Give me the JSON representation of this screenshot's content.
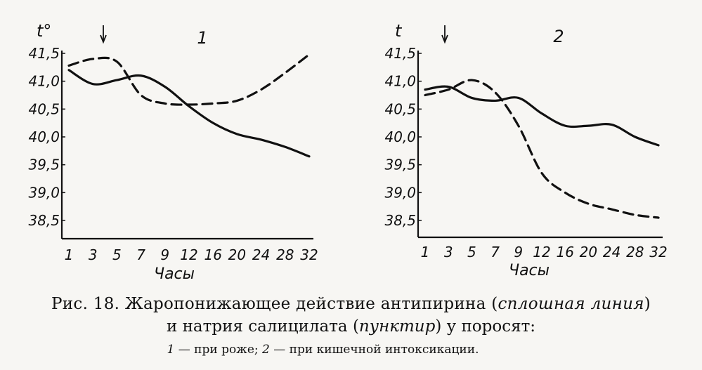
{
  "chart_data": [
    {
      "type": "line",
      "panel_label": "1",
      "ylabel": "t°",
      "xlabel": "Часы",
      "arrow_marker_x": "3",
      "categories": [
        "1",
        "3",
        "5",
        "7",
        "9",
        "12",
        "16",
        "20",
        "24",
        "28",
        "32"
      ],
      "ytick_labels": [
        "41,5",
        "41,0",
        "40,5",
        "40,0",
        "39,5",
        "39,0",
        "38,5"
      ],
      "ytick_values": [
        41.5,
        41.0,
        40.5,
        40.0,
        39.5,
        39.0,
        38.5
      ],
      "ylim": [
        38.5,
        41.5
      ],
      "series": [
        {
          "style": "solid",
          "values": [
            41.2,
            40.95,
            41.02,
            41.1,
            40.9,
            40.55,
            40.25,
            40.05,
            39.95,
            39.82,
            39.65
          ]
        },
        {
          "style": "dashed",
          "values": [
            41.28,
            41.4,
            41.35,
            40.75,
            40.6,
            40.58,
            40.6,
            40.65,
            40.85,
            41.15,
            41.48
          ]
        }
      ]
    },
    {
      "type": "line",
      "panel_label": "2",
      "ylabel": "t",
      "xlabel": "Часы",
      "arrow_marker_x": "3",
      "categories": [
        "1",
        "3",
        "5",
        "7",
        "9",
        "12",
        "16",
        "20",
        "24",
        "28",
        "32"
      ],
      "ytick_labels": [
        "41,5",
        "41,0",
        "40,5",
        "40,0",
        "39,5",
        "39,0",
        "38,5"
      ],
      "ytick_values": [
        41.5,
        41.0,
        40.5,
        40.0,
        39.5,
        39.0,
        38.5
      ],
      "ylim": [
        38.5,
        41.5
      ],
      "series": [
        {
          "style": "solid",
          "values": [
            40.85,
            40.9,
            40.7,
            40.65,
            40.7,
            40.42,
            40.2,
            40.2,
            40.22,
            40.0,
            39.85
          ]
        },
        {
          "style": "dashed",
          "values": [
            40.75,
            40.85,
            41.02,
            40.8,
            40.2,
            39.35,
            39.0,
            38.8,
            38.7,
            38.6,
            38.55
          ]
        }
      ]
    }
  ],
  "caption": {
    "line1_prefix": "Рис. 18. Жаропонижающее действие антипирина (",
    "line1_italic": "сплошная линия",
    "line1_suffix": ")",
    "line2_prefix": "и натрия салицилата (",
    "line2_italic": "пунктир",
    "line2_suffix": ") у поросят:",
    "line3_num1": "1",
    "line3_text1": " — при роже; ",
    "line3_num2": "2",
    "line3_text2": " — при кишечной интоксикации."
  }
}
